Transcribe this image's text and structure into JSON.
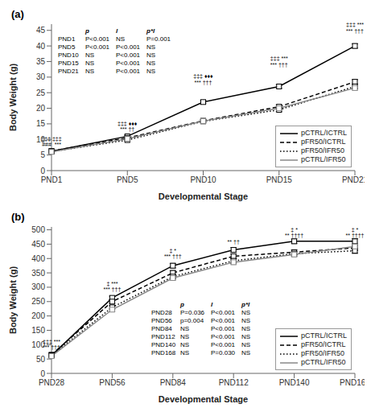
{
  "chart_data": [
    {
      "type": "line",
      "title": "(a)",
      "xlabel": "Developmental Stage",
      "ylabel": "Body Weight (g)",
      "categories": [
        "PND1",
        "PND5",
        "PND10",
        "PND15",
        "PND21"
      ],
      "series": [
        {
          "name": "pCTRL/ICTRL",
          "color": "#000000",
          "line_style": "solid",
          "marker": "square",
          "values": [
            6.2,
            11.0,
            22.0,
            27.0,
            40.0
          ],
          "errors": [
            0.15,
            0.35,
            0.5,
            0.6,
            0.7
          ]
        },
        {
          "name": "pFR50/ICTRL",
          "color": "#000000",
          "line_style": "dashed",
          "marker": "square",
          "values": [
            6.3,
            10.5,
            16.0,
            20.5,
            28.5
          ],
          "errors": [
            0.15,
            0.35,
            0.5,
            0.6,
            0.7
          ]
        },
        {
          "name": "pFR50/IFR50",
          "color": "#000000",
          "line_style": "dotted",
          "marker": "square",
          "values": [
            6.1,
            9.8,
            15.8,
            19.5,
            27.0
          ],
          "errors": [
            0.15,
            0.35,
            0.5,
            0.6,
            0.7
          ]
        },
        {
          "name": "pCTRL/IFR50",
          "color": "#888888",
          "line_style": "solid",
          "marker": "square",
          "values": [
            6.0,
            10.2,
            15.9,
            20.0,
            26.5
          ],
          "errors": [
            0.15,
            0.35,
            0.5,
            0.6,
            0.7
          ]
        }
      ],
      "ylim": [
        0,
        47
      ],
      "yticks": [
        0,
        5,
        10,
        15,
        20,
        25,
        30,
        35,
        40,
        45
      ],
      "grid": false,
      "legend": "lower right",
      "annotations": [
        {
          "x": "PND1",
          "y": 7.5,
          "text": "###  ***"
        },
        {
          "x": "PND1",
          "y": 9.2,
          "text": "‡‡‡ ‡‡‡"
        },
        {
          "x": "PND5",
          "y": 12.5,
          "text": "*** ††"
        },
        {
          "x": "PND5",
          "y": 14.2,
          "text": "‡‡‡ ♦♦♦"
        },
        {
          "x": "PND10",
          "y": 27.5,
          "text": "*** †††"
        },
        {
          "x": "PND10",
          "y": 29.5,
          "text": "‡‡‡ ♦♦♦"
        },
        {
          "x": "PND15",
          "y": 33.0,
          "text": "*** †††"
        },
        {
          "x": "PND15",
          "y": 35.0,
          "text": "‡‡‡ ***"
        },
        {
          "x": "PND21",
          "y": 44.0,
          "text": "*** †††"
        },
        {
          "x": "PND21",
          "y": 46.0,
          "text": "‡‡‡ ***"
        }
      ],
      "table": {
        "columns": [
          "p",
          "l",
          "p*l"
        ],
        "rows": [
          [
            "PND1",
            "P<0.001",
            "NS",
            "P=0.001"
          ],
          [
            "PND5",
            "P<0.001",
            "P<0.001",
            "NS"
          ],
          [
            "PND10",
            "NS",
            "P<0.001",
            "NS"
          ],
          [
            "PND15",
            "NS",
            "P<0.001",
            "NS"
          ],
          [
            "PND21",
            "NS",
            "P<0.001",
            "NS"
          ]
        ]
      }
    },
    {
      "type": "line",
      "title": "(b)",
      "xlabel": "Developmental Stage",
      "ylabel": "Body Weight (g)",
      "categories": [
        "PND28",
        "PND56",
        "PND84",
        "PND112",
        "PND140",
        "PND168"
      ],
      "series": [
        {
          "name": "pCTRL/ICTRL",
          "color": "#000000",
          "line_style": "solid",
          "marker": "square",
          "values": [
            62.0,
            263.0,
            375.0,
            430.0,
            460.0,
            460.0
          ],
          "errors": [
            3.0,
            6.0,
            8.0,
            8.0,
            8.0,
            9.0
          ]
        },
        {
          "name": "pFR50/ICTRL",
          "color": "#000000",
          "line_style": "dashed",
          "marker": "square",
          "values": [
            65.0,
            250.0,
            350.0,
            408.0,
            422.0,
            437.0
          ],
          "errors": [
            3.0,
            6.0,
            8.0,
            8.0,
            8.0,
            9.0
          ]
        },
        {
          "name": "pFR50/IFR50",
          "color": "#000000",
          "line_style": "dotted",
          "marker": "square",
          "values": [
            63.0,
            230.0,
            337.0,
            392.0,
            417.0,
            427.0
          ],
          "errors": [
            3.0,
            6.0,
            8.0,
            8.0,
            8.0,
            9.0
          ]
        },
        {
          "name": "pCTRL/IFR50",
          "color": "#888888",
          "line_style": "solid",
          "marker": "square",
          "values": [
            60.0,
            222.0,
            332.0,
            387.0,
            414.0,
            442.0
          ],
          "errors": [
            3.0,
            6.0,
            8.0,
            8.0,
            8.0,
            9.0
          ]
        }
      ],
      "ylim": [
        0,
        510
      ],
      "yticks": [
        0,
        50,
        100,
        150,
        200,
        250,
        300,
        350,
        400,
        450,
        500
      ],
      "grid": false,
      "legend": "lower right",
      "annotations": [
        {
          "x": "PND28",
          "y": 80,
          "text": "*** †††"
        },
        {
          "x": "PND28",
          "y": 100,
          "text": "‡‡‡ ***"
        },
        {
          "x": "PND56",
          "y": 282,
          "text": "*** †††"
        },
        {
          "x": "PND56",
          "y": 302,
          "text": "‡ ***"
        },
        {
          "x": "PND84",
          "y": 398,
          "text": "*** †††"
        },
        {
          "x": "PND84",
          "y": 418,
          "text": "‡ *"
        },
        {
          "x": "PND112",
          "y": 447,
          "text": "** ††"
        },
        {
          "x": "PND140",
          "y": 470,
          "text": "** ††††"
        },
        {
          "x": "PND140",
          "y": 490,
          "text": "‡ *"
        },
        {
          "x": "PND168",
          "y": 470,
          "text": "** ††††"
        },
        {
          "x": "PND168",
          "y": 490,
          "text": "‡ *"
        }
      ],
      "table": {
        "columns": [
          "p",
          "l",
          "p*l"
        ],
        "rows": [
          [
            "PND28",
            "P=0.036",
            "P<0.001",
            "NS"
          ],
          [
            "PND56",
            "p=0.004",
            "P<0.001",
            "NS"
          ],
          [
            "PND84",
            "NS",
            "P<0.001",
            "NS"
          ],
          [
            "PND112",
            "NS",
            "P<0.001",
            "NS"
          ],
          [
            "PND140",
            "NS",
            "P<0.001",
            "NS"
          ],
          [
            "PND168",
            "NS",
            "P=0.030",
            "NS"
          ]
        ]
      }
    }
  ]
}
